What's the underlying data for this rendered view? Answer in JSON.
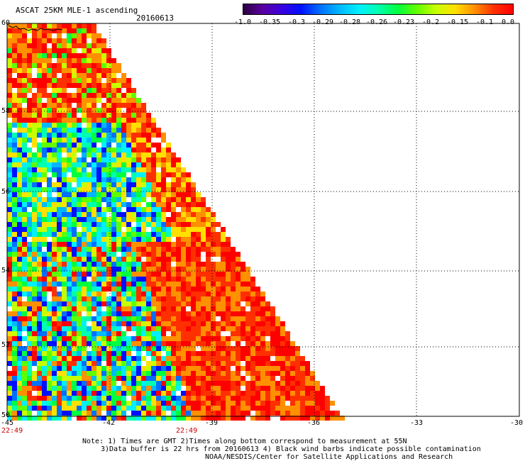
{
  "header": {
    "title": "ASCAT 25KM MLE-1 ascending",
    "date": "20160613"
  },
  "colorbar": {
    "colors": [
      "#2a0040",
      "#5a00a0",
      "#3a00e0",
      "#0010ff",
      "#0070ff",
      "#00b8ff",
      "#00f0ff",
      "#00ffb0",
      "#00ff40",
      "#60ff00",
      "#c8ff00",
      "#ffe000",
      "#ff9000",
      "#ff3000",
      "#ff0000"
    ],
    "tick_labels": [
      "-1.0",
      "-0.35",
      "-0.3",
      "-0.29",
      "-0.28",
      "-0.26",
      "-0.23",
      "-0.2",
      "-0.15",
      "-0.1",
      "0.0"
    ]
  },
  "axes": {
    "lat_labels": [
      "60",
      "58",
      "56",
      "54",
      "52",
      "50"
    ],
    "lon_labels": [
      "-45",
      "-42",
      "-39",
      "-36",
      "-33",
      "-30"
    ],
    "time_labels": [
      "22:49",
      "22:49"
    ],
    "grid": true
  },
  "swath": {
    "description_colors": [
      "#ff0000",
      "#ff3000",
      "#ff9000",
      "#ffe000",
      "#c8ff00",
      "#60ff00",
      "#00ff40",
      "#00ffb0",
      "#00f0ff",
      "#00b8ff",
      "#0070ff",
      "#0010ff",
      "#ffffff"
    ]
  },
  "notes": {
    "line1": "Note: 1) Times are GMT 2)Times along bottom correspond to measurement at 55N",
    "line2": "3)Data buffer is 22 hrs from 20160613 4) Black wind barbs indicate possible contamination",
    "line3": "NOAA/NESDIS/Center for Satellite Applications and Research"
  }
}
